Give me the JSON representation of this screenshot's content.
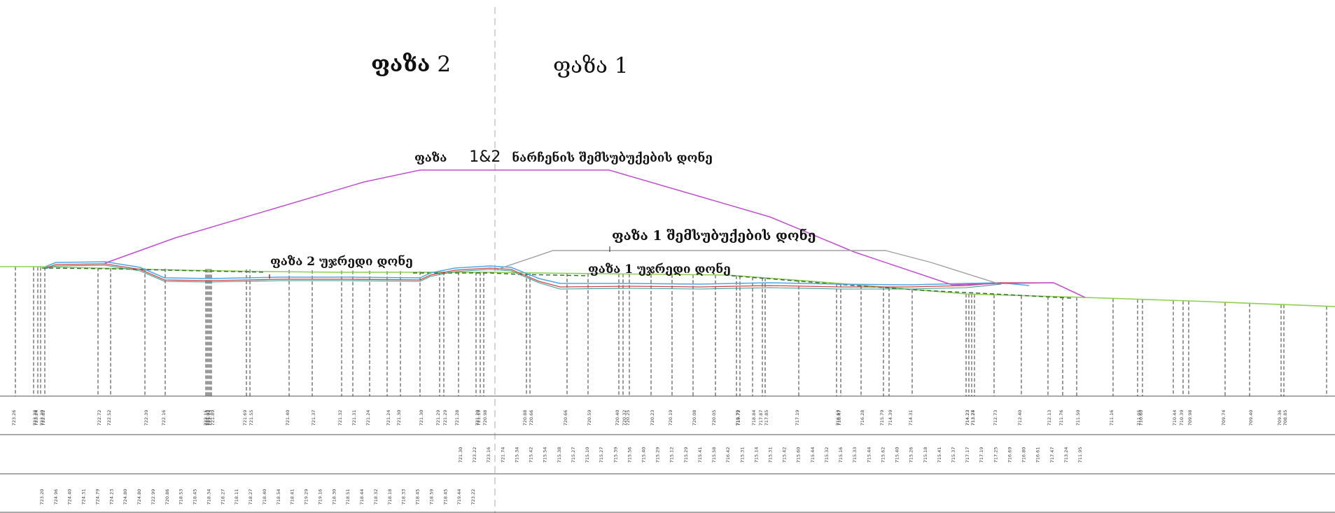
{
  "labels": {
    "phase2_word": "ფაზა",
    "phase2_num": "2",
    "phase1_title": "ფაზა 1",
    "combined_word": "ფაზა",
    "combined_num": "1&2",
    "combined_rest": "ნარჩენის შემსუბუქების დონე",
    "phase1_fill": "ფაზა 1 შემსუბუქების დონე",
    "phase2_ground": "ფაზა 2 უჯრედი  დონე",
    "phase1_ground": "ფაზა 1 უჯრედი  დონე"
  },
  "colors": {
    "fill_line": "#c04ed0",
    "phase1_fill_line": "#a0a0a0",
    "natural_ground": "#8fd04f",
    "blue_liner": "#4aa8e6",
    "red_liner": "#cc4444",
    "dashed": "#222222",
    "divider": "#bbbbbb"
  },
  "row1": [
    "723.26",
    "723.28",
    "723.24",
    "723.20",
    "722.82",
    "722.72",
    "722.52",
    "722.39",
    "722.16",
    "722.15",
    "722.15",
    "722.13",
    "721.92",
    "721.89",
    "721.69",
    "721.55",
    "721.40",
    "721.37",
    "721.32",
    "721.31",
    "721.24",
    "721.24",
    "721.30",
    "721.30",
    "721.29",
    "721.29",
    "721.28",
    "721.20",
    "721.19",
    "720.98",
    "720.88",
    "720.66",
    "720.66",
    "720.59",
    "720.40",
    "720.32",
    "720.25",
    "720.23",
    "720.19",
    "720.08",
    "720.05",
    "719.79",
    "719.72",
    "718.84",
    "717.87",
    "717.85",
    "717.19",
    "716.63",
    "716.47",
    "716.28",
    "715.79",
    "714.39",
    "714.31",
    "714.23",
    "714.23",
    "713.77",
    "713.24",
    "712.73",
    "712.40",
    "712.13",
    "711.76",
    "711.50",
    "711.16",
    "711.05",
    "710.60",
    "710.44",
    "710.39",
    "709.98",
    "709.74",
    "709.40",
    "709.36",
    "708.85"
  ],
  "row2": [
    "721.30",
    "723.22",
    "723.16",
    "721.74",
    "715.34",
    "715.42",
    "715.54",
    "715.38",
    "715.27",
    "715.10",
    "715.27",
    "715.39",
    "715.56",
    "715.40",
    "715.29",
    "715.12",
    "715.29",
    "715.41",
    "715.58",
    "716.42",
    "715.31",
    "715.14",
    "715.31",
    "715.42",
    "715.60",
    "715.44",
    "715.32",
    "715.16",
    "715.33",
    "715.44",
    "715.62",
    "715.40",
    "715.26",
    "715.18",
    "715.41",
    "715.37",
    "717.17",
    "717.19",
    "717.25",
    "716.69",
    "716.80",
    "716.61",
    "717.47",
    "713.24",
    "711.95"
  ],
  "row3": [
    "723.20",
    "724.96",
    "724.40",
    "724.31",
    "724.79",
    "724.23",
    "724.80",
    "724.80",
    "722.99",
    "720.86",
    "718.53",
    "718.45",
    "718.34",
    "718.27",
    "718.11",
    "718.27",
    "718.40",
    "718.54",
    "718.41",
    "719.29",
    "719.16",
    "718.30",
    "718.51",
    "718.44",
    "718.32",
    "718.18",
    "718.33",
    "718.45",
    "718.59",
    "718.45",
    "719.44",
    "723.22"
  ]
}
